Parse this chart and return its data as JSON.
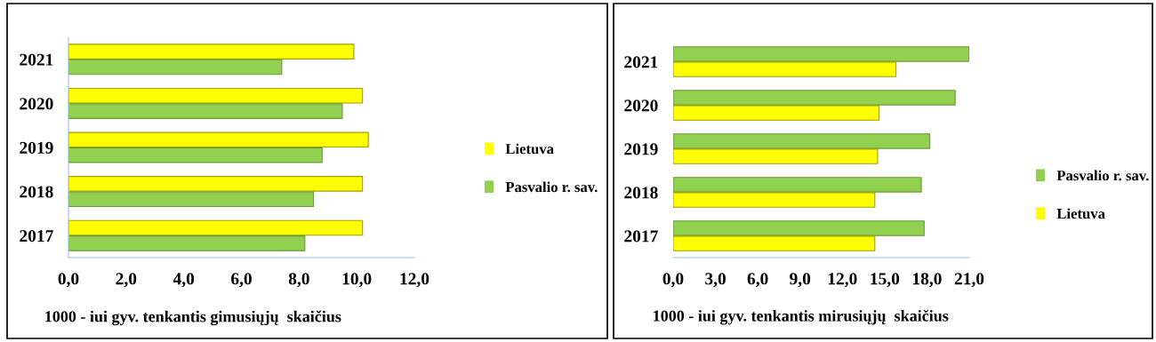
{
  "chart_data": [
    {
      "type": "bar",
      "orientation": "horizontal",
      "categories": [
        "2021",
        "2020",
        "2019",
        "2018",
        "2017"
      ],
      "xlabel": "1000 - iui gyv. tenkantis gimusiųjų  skaičius",
      "xlim": [
        0,
        12
      ],
      "xticks": [
        {
          "value": 0,
          "label": "0,0"
        },
        {
          "value": 2,
          "label": "2,0"
        },
        {
          "value": 4,
          "label": "4,0"
        },
        {
          "value": 6,
          "label": "6,0"
        },
        {
          "value": 8,
          "label": "8,0"
        },
        {
          "value": 10,
          "label": "10,0"
        },
        {
          "value": 12,
          "label": "12,0"
        }
      ],
      "legend": "right",
      "grid": false,
      "series": [
        {
          "name": "Lietuva",
          "color": "#ffff00",
          "values": [
            9.9,
            10.2,
            10.4,
            10.2,
            10.2
          ]
        },
        {
          "name": "Pasvalio r. sav.",
          "color": "#92d050",
          "values": [
            7.4,
            9.5,
            8.8,
            8.5,
            8.2
          ]
        }
      ]
    },
    {
      "type": "bar",
      "orientation": "horizontal",
      "categories": [
        "2021",
        "2020",
        "2019",
        "2018",
        "2017"
      ],
      "xlabel": "1000 - iui gyv. tenkantis mirusiųjų  skaičius",
      "xlim": [
        0,
        21
      ],
      "xticks": [
        {
          "value": 0,
          "label": "0,0"
        },
        {
          "value": 3,
          "label": "3,0"
        },
        {
          "value": 6,
          "label": "6,0"
        },
        {
          "value": 9,
          "label": "9,0"
        },
        {
          "value": 12,
          "label": "12,0"
        },
        {
          "value": 15,
          "label": "15,0"
        },
        {
          "value": 18,
          "label": "18,0"
        },
        {
          "value": 21,
          "label": "21,0"
        }
      ],
      "legend": "right",
      "grid": false,
      "series": [
        {
          "name": "Pasvalio r. sav.",
          "color": "#92d050",
          "values": [
            21.0,
            20.0,
            18.2,
            17.6,
            17.8
          ]
        },
        {
          "name": "Lietuva",
          "color": "#ffff00",
          "values": [
            15.8,
            14.6,
            14.5,
            14.3,
            14.3
          ]
        }
      ]
    }
  ]
}
